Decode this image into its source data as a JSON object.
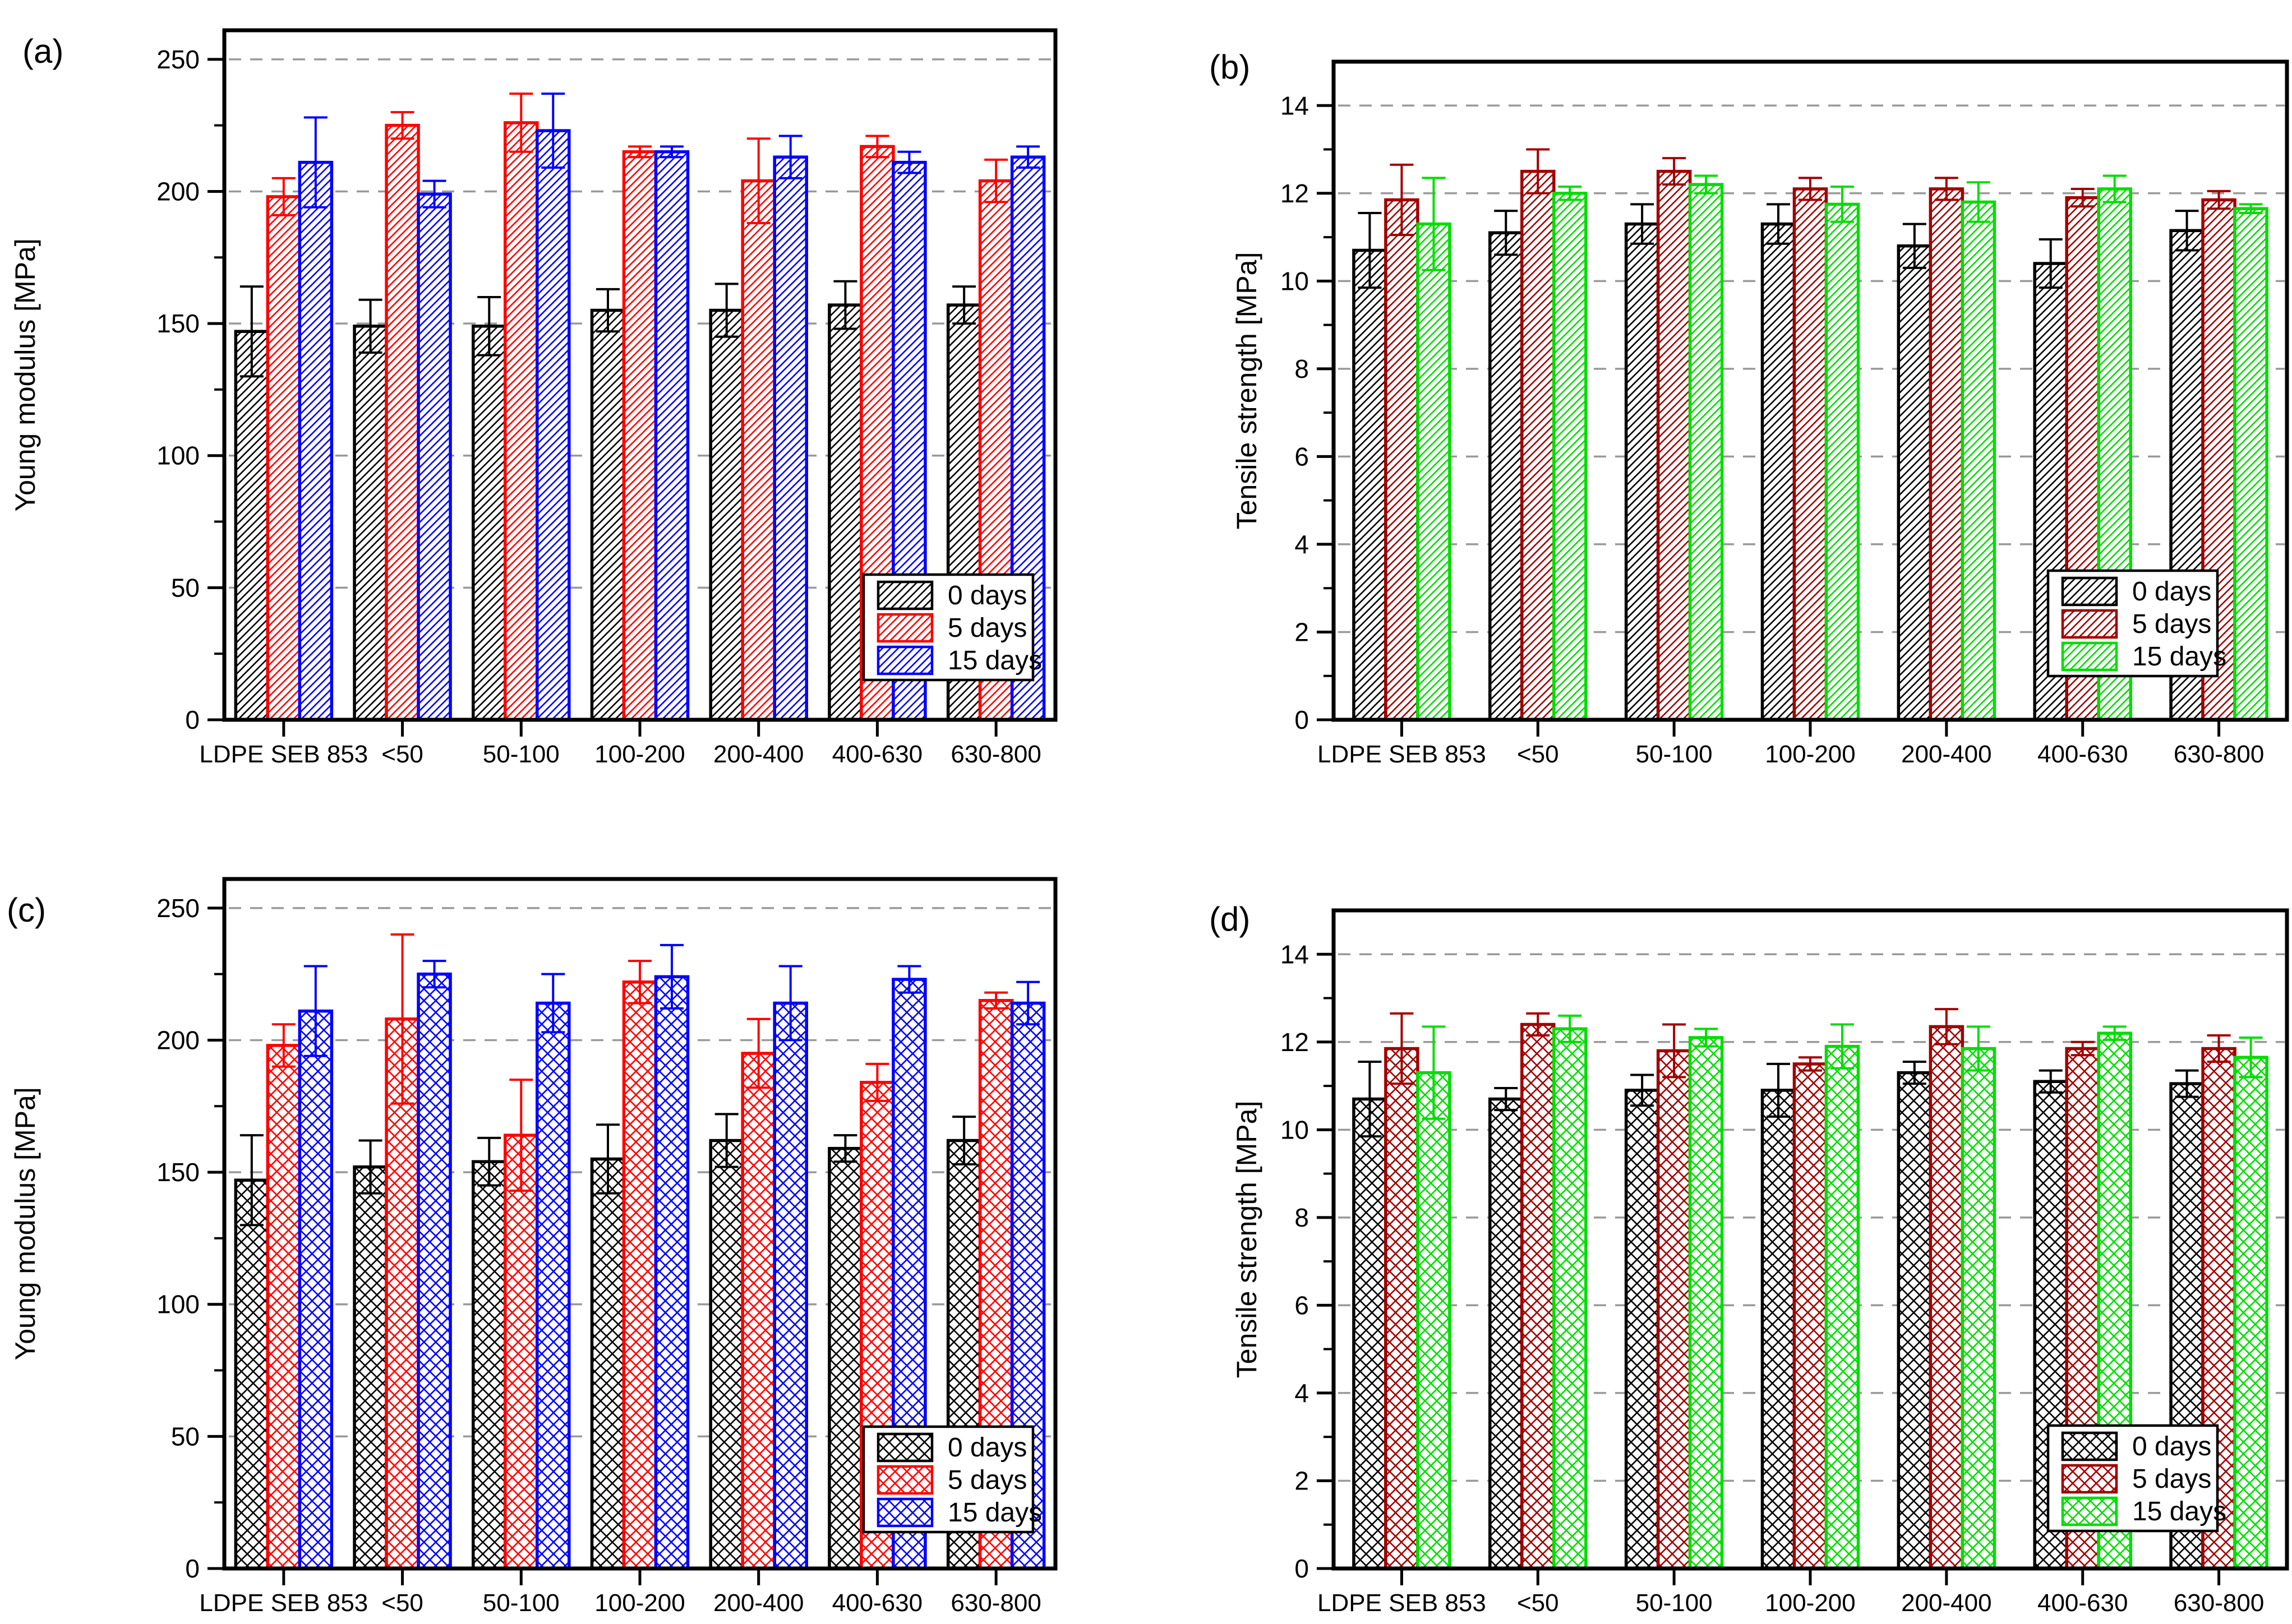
{
  "figure": {
    "background": "#ffffff",
    "panel_letters": [
      "(a)",
      "(b)",
      "(c)",
      "(d)"
    ],
    "legend_labels": [
      "0 days",
      "5 days",
      "15 days"
    ],
    "categories": [
      "LDPE SEB 853",
      "<50",
      "50-100",
      "100-200",
      "200-400",
      "400-630",
      "630-800"
    ],
    "colors": {
      "young_modulus_series": [
        "#000000",
        "#ff0000",
        "#0000ff"
      ],
      "tensile_strength_series": [
        "#000000",
        "#a00000",
        "#00dd00"
      ],
      "gridline": "#999999",
      "axis": "#000000"
    }
  },
  "chart_data": [
    {
      "panel": "(a)",
      "type": "bar",
      "title": "",
      "xlabel": "",
      "ylabel": "Young modulus [MPa]",
      "ylim": [
        0,
        261
      ],
      "yticks": [
        0,
        50,
        100,
        150,
        200,
        250
      ],
      "minor_ytick_step": 25,
      "grid": "horizontal dashed at major ticks",
      "legend_position": "lower right inside",
      "hatch": "diagonal",
      "categories": [
        "LDPE SEB 853",
        "<50",
        "50-100",
        "100-200",
        "200-400",
        "400-630",
        "630-800"
      ],
      "series": [
        {
          "name": "0 days",
          "color": "#000000",
          "values": [
            147,
            149,
            149,
            155,
            155,
            157,
            157
          ],
          "errors": [
            17,
            10,
            11,
            8,
            10,
            9,
            7
          ]
        },
        {
          "name": "5 days",
          "color": "#ff0000",
          "values": [
            198,
            225,
            226,
            215,
            204,
            217,
            204
          ],
          "errors": [
            7,
            5,
            11,
            2,
            16,
            4,
            8
          ]
        },
        {
          "name": "15 days",
          "color": "#0000ff",
          "values": [
            211,
            199,
            223,
            215,
            213,
            211,
            213
          ],
          "errors": [
            17,
            5,
            14,
            2,
            8,
            4,
            4
          ]
        }
      ]
    },
    {
      "panel": "(b)",
      "type": "bar",
      "title": "",
      "xlabel": "",
      "ylabel": "Tensile strength [MPa]",
      "ylim": [
        0,
        15
      ],
      "yticks": [
        0,
        2,
        4,
        6,
        8,
        10,
        12,
        14
      ],
      "minor_ytick_step": 1,
      "grid": "horizontal dashed at major ticks",
      "legend_position": "lower right inside",
      "hatch": "diagonal",
      "categories": [
        "LDPE SEB 853",
        "<50",
        "50-100",
        "100-200",
        "200-400",
        "400-630",
        "630-800"
      ],
      "series": [
        {
          "name": "0 days",
          "color": "#000000",
          "values": [
            10.7,
            11.1,
            11.3,
            11.3,
            10.8,
            10.4,
            11.15
          ],
          "errors": [
            0.85,
            0.5,
            0.45,
            0.45,
            0.5,
            0.55,
            0.45
          ]
        },
        {
          "name": "5 days",
          "color": "#a00000",
          "values": [
            11.85,
            12.5,
            12.5,
            12.1,
            12.1,
            11.9,
            11.85
          ],
          "errors": [
            0.8,
            0.5,
            0.3,
            0.25,
            0.25,
            0.2,
            0.2
          ]
        },
        {
          "name": "15 days",
          "color": "#00dd00",
          "values": [
            11.3,
            12.0,
            12.2,
            11.75,
            11.8,
            12.1,
            11.65
          ],
          "errors": [
            1.05,
            0.15,
            0.2,
            0.4,
            0.45,
            0.3,
            0.1
          ]
        }
      ]
    },
    {
      "panel": "(c)",
      "type": "bar",
      "title": "",
      "xlabel": "",
      "ylabel": "Young modulus [MPa]",
      "ylim": [
        0,
        261
      ],
      "yticks": [
        0,
        50,
        100,
        150,
        200,
        250
      ],
      "minor_ytick_step": 25,
      "grid": "horizontal dashed at major ticks",
      "legend_position": "lower right inside",
      "hatch": "crosshatch",
      "categories": [
        "LDPE SEB 853",
        "<50",
        "50-100",
        "100-200",
        "200-400",
        "400-630",
        "630-800"
      ],
      "series": [
        {
          "name": "0 days",
          "color": "#000000",
          "values": [
            147,
            152,
            154,
            155,
            162,
            159,
            162
          ],
          "errors": [
            17,
            10,
            9,
            13,
            10,
            5,
            9
          ]
        },
        {
          "name": "5 days",
          "color": "#ff0000",
          "values": [
            198,
            208,
            164,
            222,
            195,
            184,
            215
          ],
          "errors": [
            8,
            32,
            21,
            8,
            13,
            7,
            3
          ]
        },
        {
          "name": "15 days",
          "color": "#0000ff",
          "values": [
            211,
            225,
            214,
            224,
            214,
            223,
            214
          ],
          "errors": [
            17,
            5,
            11,
            12,
            14,
            5,
            8
          ]
        }
      ]
    },
    {
      "panel": "(d)",
      "type": "bar",
      "title": "",
      "xlabel": "",
      "ylabel": "Tensile strength [MPa]",
      "ylim": [
        0,
        15
      ],
      "yticks": [
        0,
        2,
        4,
        6,
        8,
        10,
        12,
        14
      ],
      "minor_ytick_step": 1,
      "grid": "horizontal dashed at major ticks",
      "legend_position": "lower right inside",
      "hatch": "crosshatch",
      "categories": [
        "LDPE SEB 853",
        "<50",
        "50-100",
        "100-200",
        "200-400",
        "400-630",
        "630-800"
      ],
      "series": [
        {
          "name": "0 days",
          "color": "#000000",
          "values": [
            10.7,
            10.7,
            10.9,
            10.9,
            11.3,
            11.1,
            11.05
          ],
          "errors": [
            0.85,
            0.25,
            0.35,
            0.6,
            0.25,
            0.25,
            0.3
          ]
        },
        {
          "name": "5 days",
          "color": "#a00000",
          "values": [
            11.85,
            12.4,
            11.8,
            11.5,
            12.35,
            11.85,
            11.85
          ],
          "errors": [
            0.8,
            0.25,
            0.6,
            0.15,
            0.4,
            0.15,
            0.3
          ]
        },
        {
          "name": "15 days",
          "color": "#00dd00",
          "values": [
            11.3,
            12.3,
            12.1,
            11.9,
            11.85,
            12.2,
            11.65
          ],
          "errors": [
            1.05,
            0.3,
            0.2,
            0.5,
            0.5,
            0.15,
            0.45
          ]
        }
      ]
    }
  ]
}
